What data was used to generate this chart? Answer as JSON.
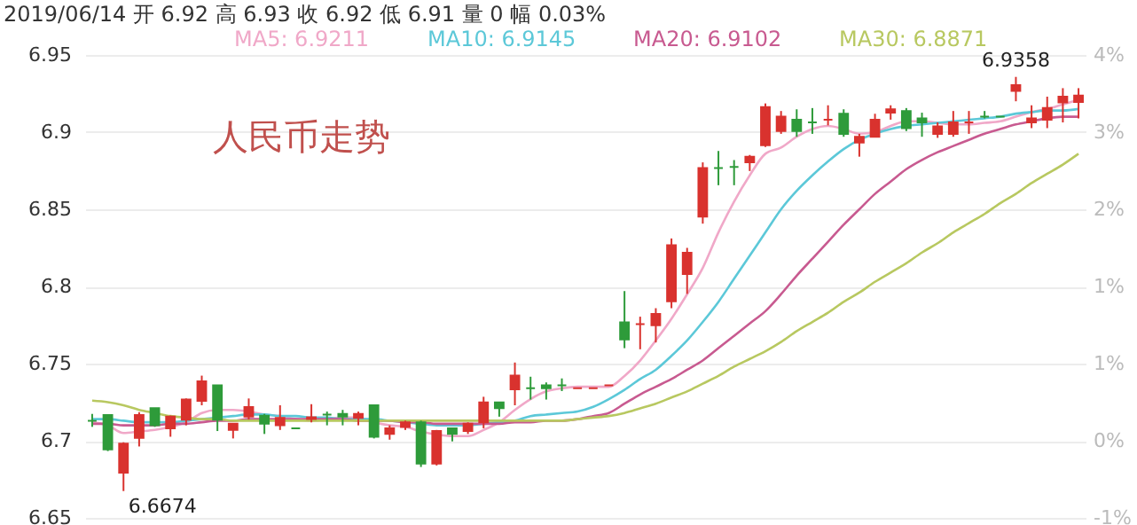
{
  "chart_data": {
    "type": "candlestick",
    "title": "人民币走势",
    "subtitle": "2019/06/14 开 6.92 高 6.93 收 6.92 低 6.91 量 0 幅 0.03%",
    "categories": [
      null,
      null,
      null,
      null,
      null,
      null,
      null,
      null,
      null,
      null,
      null,
      null,
      null,
      null,
      null,
      null,
      null,
      null,
      null,
      null,
      null,
      null,
      null,
      null,
      null,
      null,
      null,
      null,
      null,
      null,
      null,
      null,
      null,
      null,
      null,
      null,
      null,
      null,
      null,
      null,
      null,
      null,
      null,
      null,
      null,
      null,
      null,
      null,
      null,
      null,
      null,
      null,
      null,
      null,
      null,
      null,
      null,
      null,
      null,
      null,
      null,
      null,
      null,
      null
    ],
    "ohlc": [
      [
        6.713,
        6.7174,
        6.709,
        6.713
      ],
      [
        6.7167,
        6.7167,
        6.6933,
        6.6944
      ],
      [
        6.6793,
        6.699,
        6.6674,
        6.6981
      ],
      [
        6.7019,
        6.7185,
        6.6963,
        6.7167
      ],
      [
        6.7211,
        6.7211,
        6.709,
        6.71
      ],
      [
        6.7081,
        6.7163,
        6.7026,
        6.7156
      ],
      [
        6.7137,
        6.7274,
        6.71,
        6.7267
      ],
      [
        6.7259,
        6.7422,
        6.723,
        6.7385
      ],
      [
        6.7359,
        6.7359,
        6.7063,
        6.7137
      ],
      [
        6.707,
        6.7111,
        6.7015,
        6.7111
      ],
      [
        6.7156,
        6.7274,
        6.7137,
        6.7219
      ],
      [
        6.7163,
        6.7174,
        6.7044,
        6.7111
      ],
      [
        6.71,
        6.723,
        6.707,
        6.7148
      ],
      [
        6.7081,
        6.7081,
        6.7081,
        6.7081
      ],
      [
        6.7141,
        6.7237,
        6.7119,
        6.7152
      ],
      [
        6.717,
        6.7189,
        6.71,
        6.717
      ],
      [
        6.7174,
        6.72,
        6.71,
        6.7156
      ],
      [
        6.7148,
        6.7189,
        6.71,
        6.7174
      ],
      [
        6.723,
        6.723,
        6.7015,
        6.7026
      ],
      [
        6.7044,
        6.71,
        6.7007,
        6.7081
      ],
      [
        6.7089,
        6.713,
        6.707,
        6.7119
      ],
      [
        6.7119,
        6.713,
        6.683,
        6.6852
      ],
      [
        6.6852,
        6.707,
        6.684,
        6.7063
      ],
      [
        6.7081,
        6.7081,
        6.6996,
        6.7044
      ],
      [
        6.7063,
        6.7119,
        6.7044,
        6.7111
      ],
      [
        6.7119,
        6.7285,
        6.7081,
        6.7248
      ],
      [
        6.7248,
        6.7248,
        6.7156,
        6.7211
      ],
      [
        6.7333,
        6.7507,
        6.723,
        6.7422
      ],
      [
        6.734,
        6.7415,
        6.7267,
        6.734
      ],
      [
        6.7359,
        6.7378,
        6.7267,
        6.734
      ],
      [
        6.7359,
        6.7404,
        6.7322,
        6.7359
      ],
      [
        6.734,
        6.734,
        6.734,
        6.734
      ],
      [
        6.734,
        6.734,
        6.734,
        6.734
      ],
      [
        6.7359,
        6.7359,
        6.7359,
        6.7359
      ],
      [
        6.7767,
        6.797,
        6.76,
        6.7656
      ],
      [
        6.7756,
        6.7804,
        6.7593,
        6.7756
      ],
      [
        6.7748,
        6.7859,
        6.7637,
        6.7822
      ],
      [
        6.7904,
        6.8311,
        6.7859,
        6.8267
      ],
      [
        6.8081,
        6.825,
        6.7952,
        6.8219
      ],
      [
        6.8452,
        6.8804,
        6.8407,
        6.8767
      ],
      [
        6.8767,
        6.8878,
        6.8656,
        6.8767
      ],
      [
        6.8774,
        6.8819,
        6.8656,
        6.8774
      ],
      [
        6.8804,
        6.8852,
        6.8748,
        6.8841
      ],
      [
        6.8915,
        6.9186,
        6.8904,
        6.9163
      ],
      [
        6.9007,
        6.9137,
        6.8989,
        6.91
      ],
      [
        6.9081,
        6.9148,
        6.897,
        6.9007
      ],
      [
        6.9063,
        6.9156,
        6.8989,
        6.9063
      ],
      [
        6.9081,
        6.9174,
        6.9044,
        6.9081
      ],
      [
        6.9119,
        6.9148,
        6.897,
        6.8989
      ],
      [
        6.8933,
        6.8989,
        6.8841,
        6.897
      ],
      [
        6.897,
        6.9119,
        6.897,
        6.9081
      ],
      [
        6.9126,
        6.9174,
        6.9081,
        6.9148
      ],
      [
        6.9137,
        6.9156,
        6.9007,
        6.9026
      ],
      [
        6.9089,
        6.9126,
        6.897,
        6.9063
      ],
      [
        6.8989,
        6.9063,
        6.8963,
        6.9037
      ],
      [
        6.8989,
        6.9137,
        6.897,
        6.9063
      ],
      [
        6.9063,
        6.9137,
        6.8989,
        6.9063
      ],
      [
        6.91,
        6.9137,
        6.9089,
        6.91
      ],
      [
        6.91,
        6.91,
        6.91,
        6.91
      ],
      [
        6.9267,
        6.9358,
        6.92,
        6.9304
      ],
      [
        6.9063,
        6.9174,
        6.9026,
        6.9089
      ],
      [
        6.9081,
        6.923,
        6.9026,
        6.9156
      ],
      [
        6.9193,
        6.9285,
        6.9063,
        6.923
      ],
      [
        6.9196,
        6.9285,
        6.9089,
        6.9237
      ]
    ],
    "colors": [
      "#2e9b3a",
      "#2e9b3a",
      "#d9322e",
      "#d9322e",
      "#2e9b3a",
      "#d9322e",
      "#d9322e",
      "#d9322e",
      "#2e9b3a",
      "#d9322e",
      "#d9322e",
      "#2e9b3a",
      "#d9322e",
      "#2e9b3a",
      "#d9322e",
      "#2e9b3a",
      "#2e9b3a",
      "#d9322e",
      "#2e9b3a",
      "#d9322e",
      "#d9322e",
      "#2e9b3a",
      "#d9322e",
      "#2e9b3a",
      "#d9322e",
      "#d9322e",
      "#2e9b3a",
      "#d9322e",
      "#2e9b3a",
      "#2e9b3a",
      "#2e9b3a",
      "#d9322e",
      "#d9322e",
      "#d9322e",
      "#2e9b3a",
      "#d9322e",
      "#d9322e",
      "#d9322e",
      "#d9322e",
      "#d9322e",
      "#2e9b3a",
      "#2e9b3a",
      "#d9322e",
      "#d9322e",
      "#d9322e",
      "#2e9b3a",
      "#2e9b3a",
      "#d9322e",
      "#2e9b3a",
      "#d9322e",
      "#d9322e",
      "#d9322e",
      "#2e9b3a",
      "#2e9b3a",
      "#d9322e",
      "#d9322e",
      "#d9322e",
      "#2e9b3a",
      "#2e9b3a",
      "#d9322e",
      "#d9322e",
      "#d9322e",
      "#d9322e",
      "#d9322e"
    ],
    "series": [
      {
        "name": "MA5: 6.9211",
        "type": "line",
        "color": "#f0a8c8",
        "values": [
          6.712,
          6.71,
          6.705,
          6.706,
          6.707,
          6.709,
          6.712,
          6.718,
          6.72,
          6.72,
          6.719,
          6.717,
          6.716,
          6.714,
          6.713,
          6.714,
          6.715,
          6.715,
          6.712,
          6.71,
          6.709,
          6.706,
          6.704,
          6.703,
          6.703,
          6.707,
          6.712,
          6.72,
          6.727,
          6.732,
          6.734,
          6.735,
          6.735,
          6.735,
          6.742,
          6.752,
          6.765,
          6.779,
          6.795,
          6.812,
          6.835,
          6.855,
          6.872,
          6.886,
          6.89,
          6.897,
          6.902,
          6.904,
          6.902,
          6.899,
          6.9,
          6.904,
          6.907,
          6.907,
          6.906,
          6.905,
          6.905,
          6.906,
          6.907,
          6.91,
          6.913,
          6.915,
          6.918,
          6.921
        ]
      },
      {
        "name": "MA10: 6.9145",
        "type": "line",
        "color": "#5cc8d8",
        "values": [
          6.714,
          6.714,
          6.713,
          6.712,
          6.712,
          6.712,
          6.713,
          6.714,
          6.715,
          6.716,
          6.717,
          6.717,
          6.716,
          6.716,
          6.715,
          6.715,
          6.714,
          6.714,
          6.714,
          6.713,
          6.712,
          6.711,
          6.71,
          6.71,
          6.71,
          6.711,
          6.712,
          6.713,
          6.716,
          6.717,
          6.718,
          6.719,
          6.722,
          6.727,
          6.733,
          6.74,
          6.746,
          6.755,
          6.765,
          6.777,
          6.79,
          6.805,
          6.82,
          6.835,
          6.85,
          6.862,
          6.872,
          6.881,
          6.889,
          6.895,
          6.899,
          6.902,
          6.904,
          6.905,
          6.906,
          6.907,
          6.908,
          6.909,
          6.91,
          6.912,
          6.913,
          6.914,
          6.914,
          6.915
        ]
      },
      {
        "name": "MA20: 6.9102",
        "type": "line",
        "color": "#c85a90",
        "values": [
          6.711,
          6.711,
          6.71,
          6.71,
          6.71,
          6.711,
          6.711,
          6.712,
          6.713,
          6.713,
          6.714,
          6.714,
          6.714,
          6.714,
          6.714,
          6.714,
          6.714,
          6.713,
          6.713,
          6.713,
          6.712,
          6.712,
          6.711,
          6.711,
          6.711,
          6.711,
          6.711,
          6.712,
          6.712,
          6.713,
          6.713,
          6.714,
          6.716,
          6.718,
          6.724,
          6.73,
          6.735,
          6.74,
          6.746,
          6.752,
          6.76,
          6.768,
          6.776,
          6.784,
          6.795,
          6.807,
          6.818,
          6.829,
          6.84,
          6.85,
          6.86,
          6.868,
          6.876,
          6.882,
          6.887,
          6.891,
          6.895,
          6.899,
          6.902,
          6.905,
          6.907,
          6.909,
          6.91,
          6.91
        ]
      },
      {
        "name": "MA30: 6.8871",
        "type": "line",
        "color": "#b8c860",
        "values": [
          6.726,
          6.725,
          6.723,
          6.72,
          6.718,
          6.716,
          6.715,
          6.714,
          6.714,
          6.713,
          6.713,
          6.713,
          6.713,
          6.713,
          6.713,
          6.713,
          6.713,
          6.713,
          6.713,
          6.713,
          6.713,
          6.713,
          6.713,
          6.713,
          6.713,
          6.713,
          6.713,
          6.713,
          6.713,
          6.713,
          6.713,
          6.714,
          6.715,
          6.716,
          6.718,
          6.721,
          6.724,
          6.728,
          6.732,
          6.737,
          6.742,
          6.748,
          6.753,
          6.758,
          6.764,
          6.771,
          6.777,
          6.783,
          6.79,
          6.796,
          6.803,
          6.809,
          6.815,
          6.822,
          6.828,
          6.835,
          6.841,
          6.847,
          6.854,
          6.86,
          6.867,
          6.873,
          6.879,
          6.886
        ]
      }
    ],
    "ylim": [
      6.65,
      6.95
    ],
    "yticks": [
      6.65,
      6.7,
      6.75,
      6.8,
      6.85,
      6.9,
      6.95
    ],
    "y2lim": [
      -0.746,
      3.731
    ],
    "y2ticks": [
      {
        "value": -0.746,
        "label": "-1%"
      },
      {
        "value": 0,
        "label": "0%"
      },
      {
        "value": 0.746,
        "label": "1%"
      },
      {
        "value": 1.493,
        "label": "1%"
      },
      {
        "value": 2.239,
        "label": "2%"
      },
      {
        "value": 2.985,
        "label": "3%"
      },
      {
        "value": 3.731,
        "label": "4%"
      }
    ],
    "grid": "y",
    "legend": "top left",
    "tick_labels": "y",
    "annotations": [
      "6.6674",
      "6.9358"
    ]
  }
}
